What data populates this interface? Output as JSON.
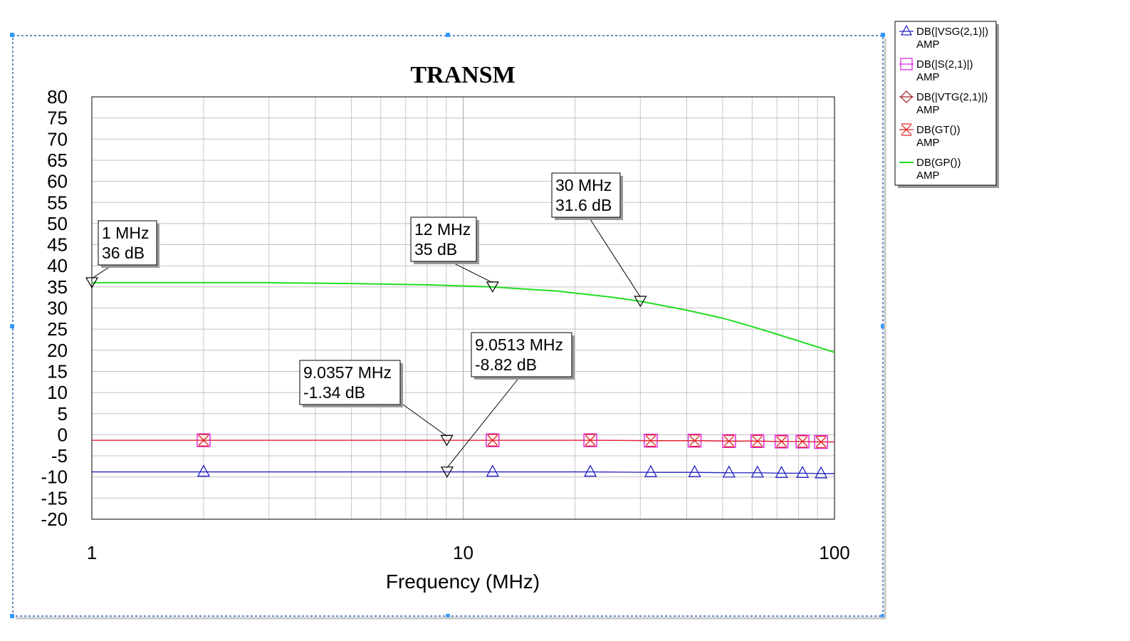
{
  "chart_data": {
    "type": "line",
    "title": "TRANSM",
    "xlabel": "Frequency (MHz)",
    "ylabel": "",
    "x_scale": "log",
    "xlim": [
      1,
      100
    ],
    "ylim": [
      -20,
      80
    ],
    "grid": true,
    "legend_placement": "right, outside plot",
    "x_ticks": [
      "1",
      "10",
      "100"
    ],
    "y_ticks": [
      "80",
      "75",
      "70",
      "65",
      "60",
      "55",
      "50",
      "45",
      "40",
      "35",
      "30",
      "25",
      "20",
      "15",
      "10",
      "5",
      "0",
      "-5",
      "-10",
      "-15",
      "-20"
    ],
    "series": [
      {
        "name": "DB(|VSG(2,1)|)",
        "sub": "AMP",
        "color": "#2020c0",
        "marker": "triangle-up",
        "x": [
          1,
          2,
          9,
          12,
          22,
          32,
          42,
          52,
          62,
          72,
          82,
          92,
          100
        ],
        "y": [
          -8.8,
          -8.8,
          -8.8,
          -8.8,
          -8.8,
          -8.9,
          -8.9,
          -9.0,
          -9.0,
          -9.1,
          -9.1,
          -9.2,
          -9.2
        ],
        "markers_x": [
          2,
          12,
          22,
          32,
          42,
          52,
          62,
          72,
          82,
          92
        ]
      },
      {
        "name": "DB(|S(2,1)|)",
        "sub": "AMP",
        "color": "#e020e0",
        "marker": "square",
        "x": [
          1,
          2,
          9,
          12,
          22,
          32,
          42,
          52,
          62,
          72,
          82,
          92,
          100
        ],
        "y": [
          -1.3,
          -1.3,
          -1.3,
          -1.3,
          -1.3,
          -1.4,
          -1.4,
          -1.5,
          -1.5,
          -1.6,
          -1.6,
          -1.7,
          -1.7
        ],
        "markers_x": [
          2,
          12,
          22,
          32,
          42,
          52,
          62,
          72,
          82,
          92
        ]
      },
      {
        "name": "DB(|VTG(2,1)|)",
        "sub": "AMP",
        "color": "#a02020",
        "marker": "diamond",
        "x": [],
        "y": [],
        "markers_x": []
      },
      {
        "name": "DB(GT())",
        "sub": "AMP",
        "color": "#e02020",
        "marker": "x",
        "x": [
          1,
          2,
          9,
          12,
          22,
          32,
          42,
          52,
          62,
          72,
          82,
          92,
          100
        ],
        "y": [
          -1.3,
          -1.3,
          -1.3,
          -1.3,
          -1.3,
          -1.4,
          -1.4,
          -1.5,
          -1.5,
          -1.6,
          -1.6,
          -1.7,
          -1.7
        ],
        "markers_x": [
          2,
          12,
          22,
          32,
          42,
          52,
          62,
          72,
          82,
          92
        ]
      },
      {
        "name": "DB(GP())",
        "sub": "AMP",
        "color": "#22dd22",
        "marker": "none",
        "x": [
          1,
          2,
          3,
          5,
          8,
          12,
          18,
          25,
          30,
          40,
          50,
          60,
          70,
          80,
          90,
          100
        ],
        "y": [
          36.0,
          36.0,
          36.0,
          35.8,
          35.5,
          35.0,
          34.0,
          32.6,
          31.6,
          29.5,
          27.6,
          25.6,
          23.8,
          22.2,
          20.8,
          19.5
        ],
        "markers_x": []
      }
    ],
    "annotations": [
      {
        "line1": "1 MHz",
        "line2": "36 dB",
        "x": 1,
        "y": 36
      },
      {
        "line1": "12 MHz",
        "line2": "35 dB",
        "x": 12,
        "y": 35
      },
      {
        "line1": "30 MHz",
        "line2": "31.6 dB",
        "x": 30,
        "y": 31.6
      },
      {
        "line1": "9.0357 MHz",
        "line2": "-1.34 dB",
        "x": 9.0357,
        "y": -1.34
      },
      {
        "line1": "9.0513 MHz",
        "line2": "-8.82 dB",
        "x": 9.0513,
        "y": -8.82
      }
    ]
  }
}
